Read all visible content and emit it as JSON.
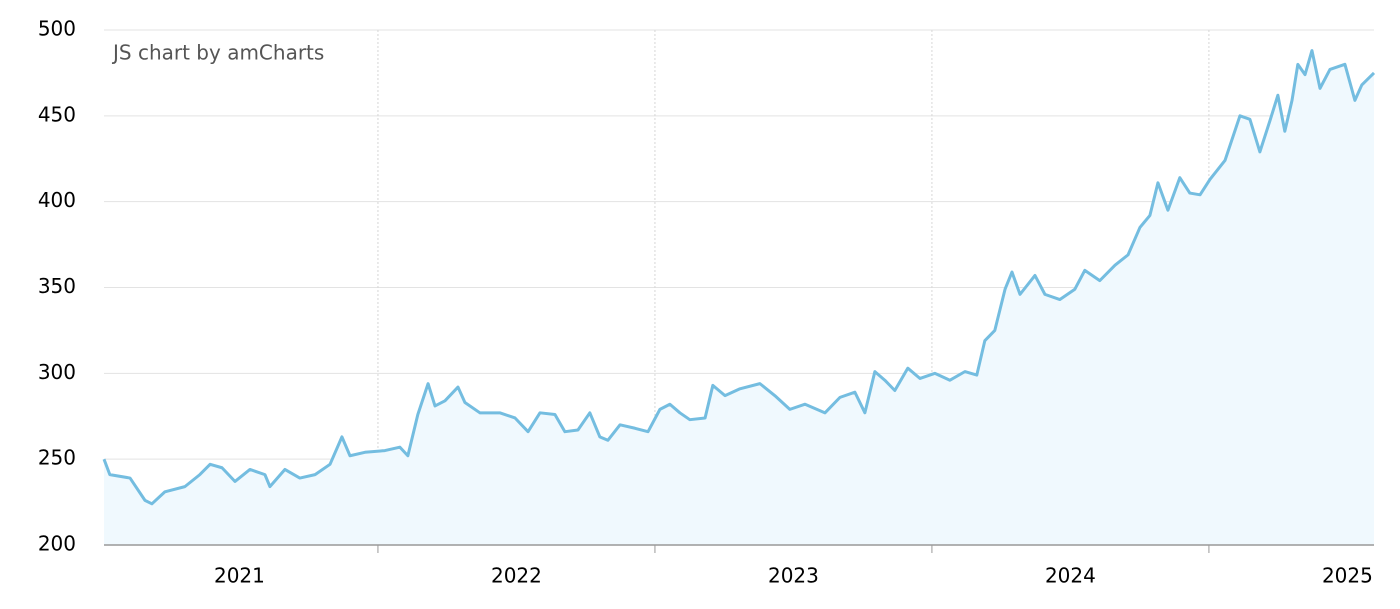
{
  "chart_data": {
    "type": "line",
    "credit": "JS chart by amCharts",
    "color": "#74bde0",
    "area_color": "#f0f9fe",
    "grid": true,
    "ylim": [
      200,
      500
    ],
    "yticks": [
      200,
      250,
      300,
      350,
      400,
      450,
      500
    ],
    "xlim": [
      2021.011,
      2025.596
    ],
    "xticks": [
      2021,
      2022,
      2023,
      2024,
      2025
    ],
    "x": [
      2021.011,
      2021.032,
      2021.105,
      2021.159,
      2021.184,
      2021.231,
      2021.303,
      2021.357,
      2021.394,
      2021.437,
      2021.484,
      2021.538,
      2021.592,
      2021.61,
      2021.664,
      2021.718,
      2021.773,
      2021.827,
      2021.87,
      2021.899,
      2021.953,
      2022.025,
      2022.079,
      2022.108,
      2022.144,
      2022.181,
      2022.206,
      2022.242,
      2022.289,
      2022.314,
      2022.368,
      2022.44,
      2022.495,
      2022.542,
      2022.585,
      2022.639,
      2022.675,
      2022.722,
      2022.765,
      2022.801,
      2022.83,
      2022.874,
      2022.928,
      2022.975,
      2023.018,
      2023.054,
      2023.09,
      2023.126,
      2023.181,
      2023.209,
      2023.253,
      2023.307,
      2023.379,
      2023.433,
      2023.487,
      2023.542,
      2023.614,
      2023.668,
      2023.722,
      2023.758,
      2023.794,
      2023.83,
      2023.866,
      2023.913,
      2023.957,
      2024.011,
      2024.065,
      2024.119,
      2024.162,
      2024.191,
      2024.227,
      2024.264,
      2024.289,
      2024.318,
      2024.372,
      2024.408,
      2024.462,
      2024.516,
      2024.552,
      2024.606,
      2024.661,
      2024.708,
      2024.751,
      2024.787,
      2024.816,
      2024.852,
      2024.895,
      2024.931,
      2024.968,
      2025.004,
      2025.058,
      2025.112,
      2025.148,
      2025.184,
      2025.22,
      2025.249,
      2025.274,
      2025.3,
      2025.321,
      2025.347,
      2025.372,
      2025.401,
      2025.437,
      2025.491,
      2025.527,
      2025.552,
      2025.596
    ],
    "values": [
      250,
      241,
      239,
      226,
      224,
      231,
      234,
      241,
      247,
      245,
      237,
      244,
      241,
      234,
      244,
      239,
      241,
      247,
      263,
      252,
      254,
      255,
      257,
      252,
      276,
      294,
      281,
      284,
      292,
      283,
      277,
      277,
      274,
      266,
      277,
      276,
      266,
      267,
      277,
      263,
      261,
      270,
      268,
      266,
      279,
      282,
      277,
      273,
      274,
      293,
      287,
      291,
      294,
      287,
      279,
      282,
      277,
      286,
      289,
      277,
      301,
      296,
      290,
      303,
      297,
      300,
      296,
      301,
      299,
      319,
      325,
      349,
      359,
      346,
      357,
      346,
      343,
      349,
      360,
      354,
      363,
      369,
      385,
      392,
      411,
      395,
      414,
      405,
      404,
      413,
      424,
      450,
      448,
      429,
      447,
      462,
      441,
      459,
      480,
      474,
      488,
      466,
      477,
      480,
      459,
      468,
      475
    ]
  }
}
